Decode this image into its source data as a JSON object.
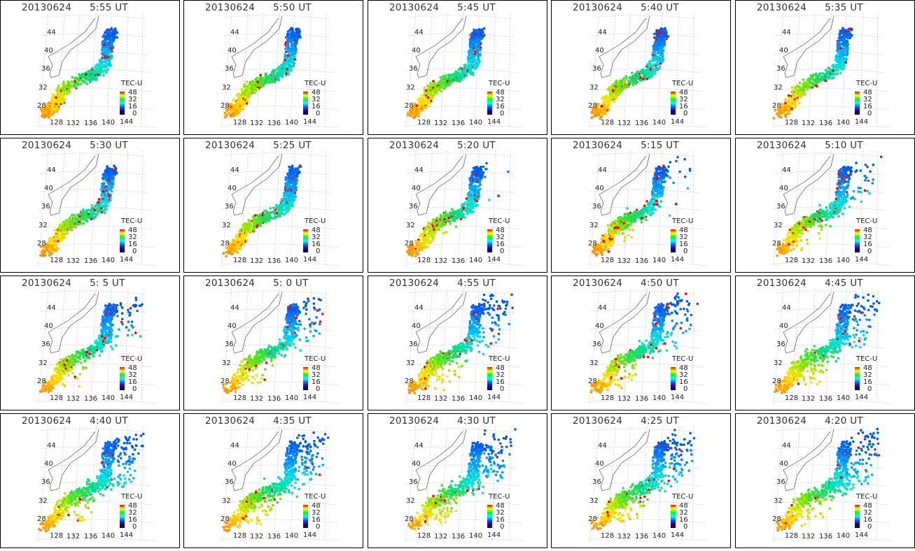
{
  "date": "20130624",
  "time_suffix": "UT",
  "colorbar": {
    "title": "TEC-U",
    "ticks": [
      "48",
      "32",
      "16",
      "0"
    ],
    "colors": [
      "#ff0000",
      "#ffff00",
      "#00ff00",
      "#00ffff",
      "#0060ff",
      "#2000a0",
      "#200020"
    ]
  },
  "lat_labels": [
    "44",
    "40",
    "36",
    "32",
    "28"
  ],
  "lon_labels": [
    "128",
    "132",
    "136",
    "140",
    "144"
  ],
  "panels": [
    {
      "time": "5:55"
    },
    {
      "time": "5:50"
    },
    {
      "time": "5:45"
    },
    {
      "time": "5:40"
    },
    {
      "time": "5:35"
    },
    {
      "time": "5:30"
    },
    {
      "time": "5:25"
    },
    {
      "time": "5:20"
    },
    {
      "time": "5:15"
    },
    {
      "time": "5:10"
    },
    {
      "time": "5: 5"
    },
    {
      "time": "5: 0"
    },
    {
      "time": "4:55"
    },
    {
      "time": "4:50"
    },
    {
      "time": "4:45"
    },
    {
      "time": "4:40"
    },
    {
      "time": "4:35"
    },
    {
      "time": "4:30"
    },
    {
      "time": "4:25"
    },
    {
      "time": "4:20"
    }
  ]
}
